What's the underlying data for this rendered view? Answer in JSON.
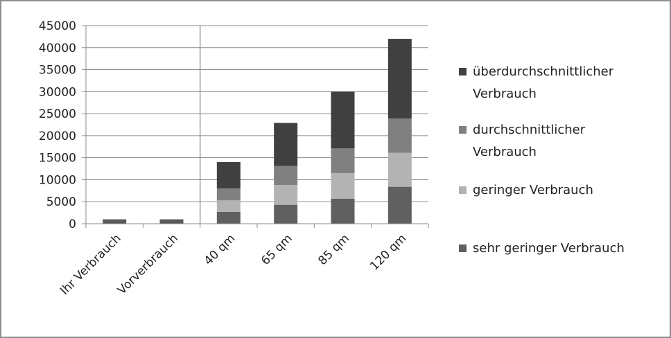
{
  "chart_data": {
    "type": "bar",
    "stacked": true,
    "categories": [
      "Ihr Verbrauch",
      "Vorverbrauch",
      "40 qm",
      "65 qm",
      "85 qm",
      "120 qm"
    ],
    "ylim": [
      0,
      45000
    ],
    "yticks": [
      0,
      5000,
      10000,
      15000,
      20000,
      25000,
      30000,
      35000,
      40000,
      45000
    ],
    "ytick_labels": [
      "0",
      "5000",
      "10000",
      "15000",
      "20000",
      "25000",
      "30000",
      "35000",
      "40000",
      "45000"
    ],
    "grid": true,
    "legend_position": "right",
    "single_series": {
      "color": "#595959",
      "values": [
        1000,
        1000,
        null,
        null,
        null,
        null
      ]
    },
    "series": [
      {
        "name": "sehr geringer Verbrauch",
        "color": "#606060",
        "values": [
          null,
          null,
          2700,
          4300,
          5700,
          8400
        ]
      },
      {
        "name": "geringer Verbrauch",
        "color": "#b3b3b3",
        "values": [
          null,
          null,
          2600,
          4500,
          5800,
          7700
        ]
      },
      {
        "name": "durchschnittlicher Verbrauch",
        "color": "#808080",
        "values": [
          null,
          null,
          2700,
          4300,
          5600,
          7800
        ]
      },
      {
        "name": "überdurchschnittlicher Verbrauch",
        "color": "#404040",
        "values": [
          null,
          null,
          6000,
          9800,
          12900,
          18100
        ]
      }
    ],
    "legend": [
      {
        "lines": [
          "überdurchschnittlicher",
          "Verbrauch"
        ],
        "color": "#404040"
      },
      {
        "lines": [
          "durchschnittlicher",
          "Verbrauch"
        ],
        "color": "#808080"
      },
      {
        "lines": [
          "geringer Verbrauch"
        ],
        "color": "#b3b3b3"
      },
      {
        "lines": [
          "sehr geringer Verbrauch"
        ],
        "color": "#606060"
      }
    ]
  }
}
